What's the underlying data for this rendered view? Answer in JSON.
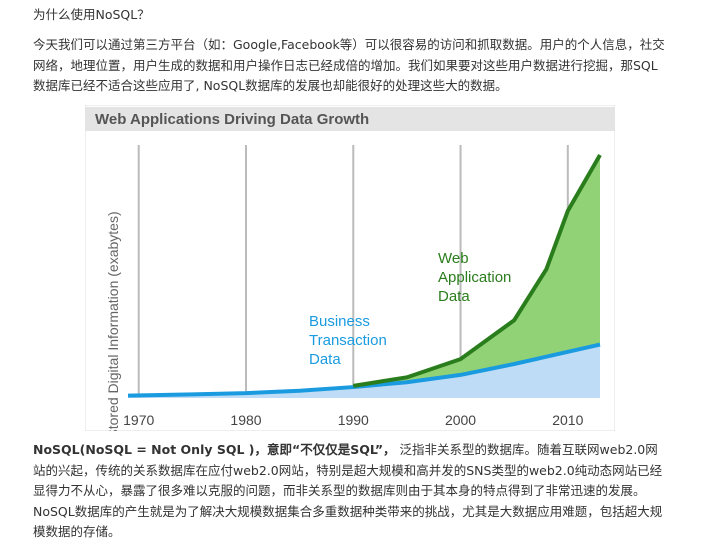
{
  "header": {
    "title": "为什么使用NoSQL？"
  },
  "intro": "今天我们可以通过第三方平台（如：Google,Facebook等）可以很容易的访问和抓取数据。用户的个人信息，社交网络，地理位置，用户生成的数据和用户操作日志已经成倍的增加。我们如果要对这些用户数据进行挖掘，那SQL数据库已经不适合这些应用了, NoSQL数据库的发展也却能很好的处理这些大的数据。",
  "chart_data": {
    "type": "area",
    "stacked": true,
    "title": "Web Applications Driving Data Growth",
    "y_label": "Stored Digital Information (exabytes)",
    "x": [
      1969,
      1975,
      1980,
      1985,
      1990,
      1995,
      2000,
      2005,
      2008,
      2010,
      2013
    ],
    "series": [
      {
        "name": "Business Transaction Data",
        "color": "#1a9be0",
        "fill": "#bfdcf6",
        "values": [
          1,
          1.5,
          2,
          3,
          4.5,
          6.5,
          9.5,
          14,
          17,
          19,
          22
        ]
      },
      {
        "name": "Web Application Data",
        "color": "#2a7d1c",
        "fill": "#92d276",
        "values": [
          null,
          null,
          null,
          null,
          0.5,
          2,
          6.5,
          18,
          36,
          58,
          78
        ]
      }
    ],
    "xlim": [
      1969,
      2013
    ],
    "ylim": [
      0,
      100
    ],
    "xticks": [
      1970,
      1980,
      1990,
      2000,
      2010
    ],
    "grid": true
  },
  "bottom": {
    "bold": "NoSQL(NoSQL = Not Only SQL )，意即“不仅仅是SQL”，",
    "text": " 泛指非关系型的数据库。随着互联网web2.0网站的兴起，传统的关系数据库在应付web2.0网站，特别是超大规模和高并发的SNS类型的web2.0纯动态网站已经显得力不从心，暴露了很多难以克服的问题，而非关系型的数据库则由于其本身的特点得到了非常迅速的发展。NoSQL数据库的产生就是为了解决大规模数据集合多重数据种类带来的挑战，尤其是大数据应用难题，包括超大规模数据的存储。"
  }
}
